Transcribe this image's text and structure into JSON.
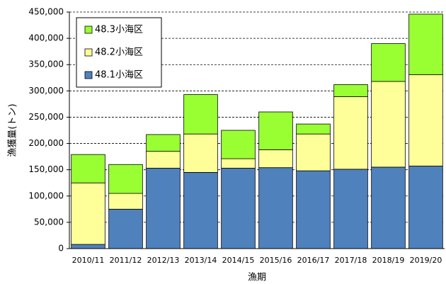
{
  "chart_data": {
    "type": "stacked_bar",
    "y_label": "漁獲量(トン)",
    "x_label": "漁期",
    "categories": [
      "2010/11",
      "2011/12",
      "2012/13",
      "2013/14",
      "2014/15",
      "2015/16",
      "2016/17",
      "2017/18",
      "2018/19",
      "2019/20"
    ],
    "series": [
      {
        "name": "48.1小海区",
        "color": "#4f81bd",
        "values": [
          8000,
          75000,
          153000,
          145000,
          153000,
          154000,
          148000,
          151000,
          155000,
          157000
        ]
      },
      {
        "name": "48.2小海区",
        "color": "#ffff99",
        "values": [
          117000,
          30000,
          32000,
          73000,
          18000,
          34000,
          70000,
          138000,
          163000,
          174000
        ]
      },
      {
        "name": "48.3小海区",
        "color": "#99ff33",
        "values": [
          54000,
          55000,
          32000,
          75000,
          54000,
          72000,
          19000,
          23000,
          72000,
          115000
        ]
      }
    ],
    "ylim": [
      0,
      450000
    ],
    "yticks": [
      0,
      {
        "value": 50000,
        "label": "50,000"
      },
      {
        "value": 100000,
        "label": "100,000"
      },
      {
        "value": 150000,
        "label": "150,000"
      },
      {
        "value": 200000,
        "label": "200,000"
      },
      {
        "value": 250000,
        "label": "250,000"
      },
      {
        "value": 300000,
        "label": "300,000"
      },
      {
        "value": 350000,
        "label": "350,000"
      },
      {
        "value": 400000,
        "label": "400,000"
      },
      {
        "value": 450000,
        "label": "450,000"
      }
    ],
    "grid": true,
    "legend": "upper-left"
  }
}
